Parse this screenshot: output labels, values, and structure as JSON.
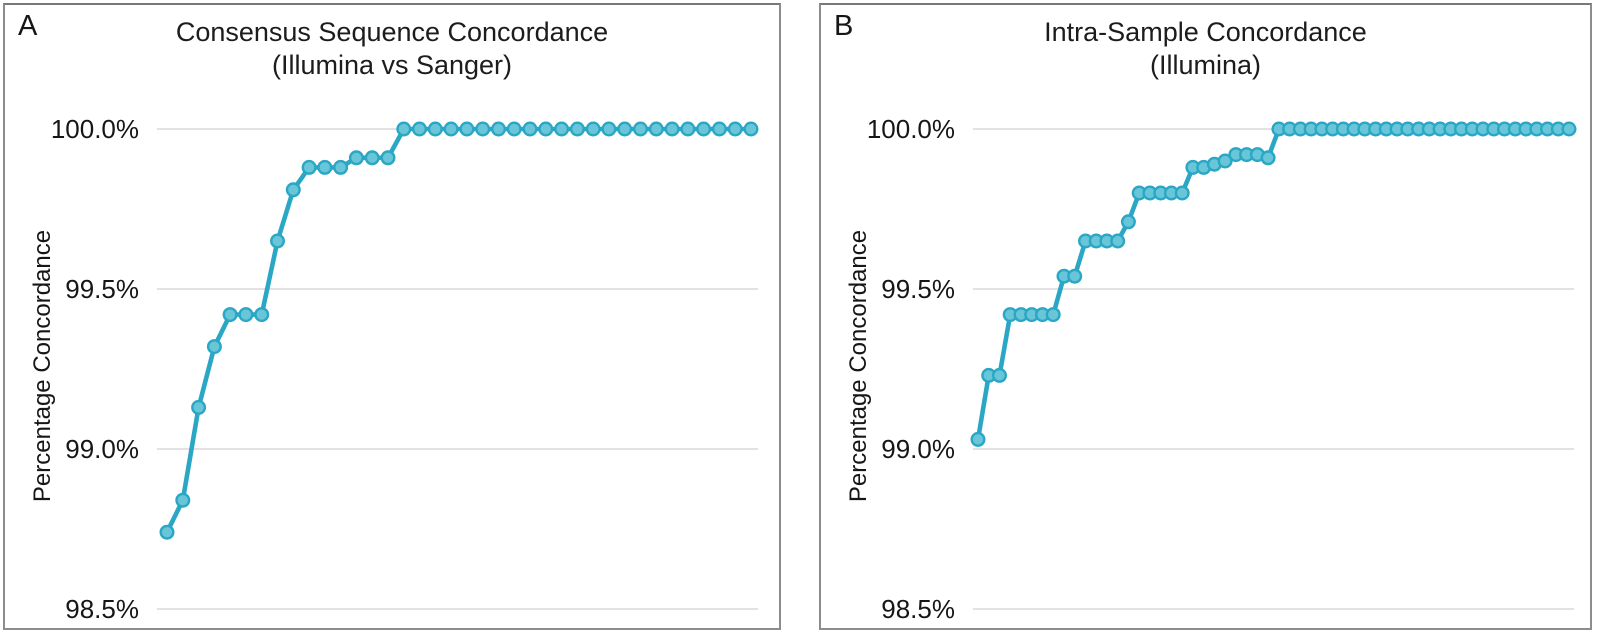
{
  "chart_data": [
    {
      "type": "line",
      "panel_label": "A",
      "title": "Consensus Sequence Concordance",
      "subtitle": "(Illumina vs Sanger)",
      "ylabel": "Percentage Concordance",
      "yticks": [
        {
          "label": "100.0%",
          "value": 100.0
        },
        {
          "label": "99.5%",
          "value": 99.5
        },
        {
          "label": "99.0%",
          "value": 99.0
        },
        {
          "label": "98.5%",
          "value": 98.5
        }
      ],
      "ylim": [
        98.45,
        100.4
      ],
      "grid": true,
      "legend": "none",
      "x_axis": "hidden sample index",
      "x": [
        1,
        2,
        3,
        4,
        5,
        6,
        7,
        8,
        9,
        10,
        11,
        12,
        13,
        14,
        15,
        16,
        17,
        18,
        19,
        20,
        21,
        22,
        23,
        24,
        25,
        26,
        27,
        28,
        29,
        30,
        31,
        32,
        33,
        34,
        35,
        36,
        37,
        38
      ],
      "values": [
        98.74,
        98.84,
        99.13,
        99.32,
        99.42,
        99.42,
        99.42,
        99.65,
        99.81,
        99.88,
        99.88,
        99.88,
        99.91,
        99.91,
        99.91,
        100.0,
        100.0,
        100.0,
        100.0,
        100.0,
        100.0,
        100.0,
        100.0,
        100.0,
        100.0,
        100.0,
        100.0,
        100.0,
        100.0,
        100.0,
        100.0,
        100.0,
        100.0,
        100.0,
        100.0,
        100.0,
        100.0,
        100.0
      ],
      "line_color": "#2aa7c4",
      "marker_fill": "#69c6d9",
      "grid_color": "#d9d9d9"
    },
    {
      "type": "line",
      "panel_label": "B",
      "title": "Intra-Sample Concordance",
      "subtitle": "(Illumina)",
      "ylabel": "Percentage Concordance",
      "yticks": [
        {
          "label": "100.0%",
          "value": 100.0
        },
        {
          "label": "99.5%",
          "value": 99.5
        },
        {
          "label": "99.0%",
          "value": 99.0
        },
        {
          "label": "98.5%",
          "value": 98.5
        }
      ],
      "ylim": [
        98.45,
        100.4
      ],
      "grid": true,
      "legend": "none",
      "x_axis": "hidden sample index",
      "x": [
        1,
        2,
        3,
        4,
        5,
        6,
        7,
        8,
        9,
        10,
        11,
        12,
        13,
        14,
        15,
        16,
        17,
        18,
        19,
        20,
        21,
        22,
        23,
        24,
        25,
        26,
        27,
        28,
        29,
        30,
        31,
        32,
        33,
        34,
        35,
        36,
        37,
        38,
        39,
        40,
        41,
        42,
        43,
        44,
        45,
        46,
        47,
        48,
        49,
        50,
        51,
        52,
        53,
        54,
        55,
        56
      ],
      "values": [
        99.03,
        99.23,
        99.23,
        99.42,
        99.42,
        99.42,
        99.42,
        99.42,
        99.54,
        99.54,
        99.65,
        99.65,
        99.65,
        99.65,
        99.71,
        99.8,
        99.8,
        99.8,
        99.8,
        99.8,
        99.88,
        99.88,
        99.89,
        99.9,
        99.92,
        99.92,
        99.92,
        99.91,
        100.0,
        100.0,
        100.0,
        100.0,
        100.0,
        100.0,
        100.0,
        100.0,
        100.0,
        100.0,
        100.0,
        100.0,
        100.0,
        100.0,
        100.0,
        100.0,
        100.0,
        100.0,
        100.0,
        100.0,
        100.0,
        100.0,
        100.0,
        100.0,
        100.0,
        100.0,
        100.0,
        100.0
      ],
      "line_color": "#2aa7c4",
      "marker_fill": "#69c6d9",
      "grid_color": "#d9d9d9"
    }
  ]
}
